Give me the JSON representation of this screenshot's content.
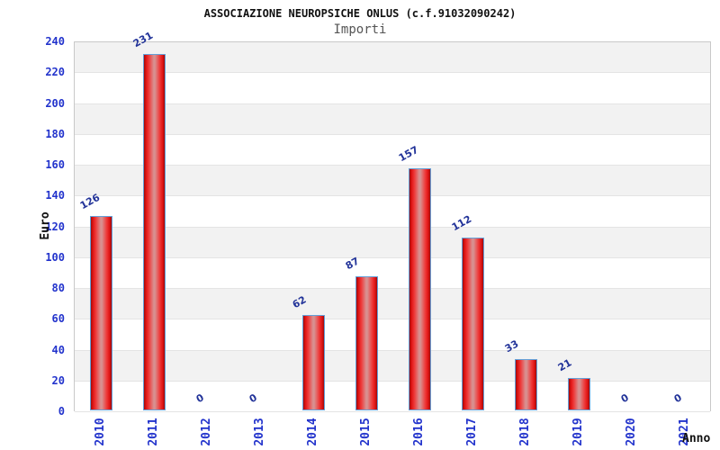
{
  "header": {
    "title": "ASSOCIAZIONE NEUROPSICHE ONLUS (c.f.91032090242)",
    "subtitle": "Importi"
  },
  "chart_data": {
    "type": "bar",
    "title": "ASSOCIAZIONE NEUROPSICHE ONLUS (c.f.91032090242)",
    "subtitle": "Importi",
    "categories": [
      "2010",
      "2011",
      "2012",
      "2013",
      "2014",
      "2015",
      "2016",
      "2017",
      "2018",
      "2019",
      "2020",
      "2021"
    ],
    "values": [
      126,
      231,
      0,
      0,
      62,
      87,
      157,
      112,
      33,
      21,
      0,
      0
    ],
    "xlabel": "Anno",
    "ylabel": "Euro",
    "ylim": [
      0,
      240
    ],
    "ytick_step": 20,
    "grid": "horizontal-bands-alternating",
    "legend": "none"
  },
  "colors": {
    "bar_edge_dark": "#9e0b0b",
    "bar_main": "#e01414",
    "bar_center": "#d89090",
    "bar_border": "#64a0d8",
    "axis_tick_label": "#2233cc",
    "value_label": "#223399",
    "band_gray": "#f2f2f2",
    "band_white": "#ffffff",
    "plot_border": "#c9c9c9",
    "title_color": "#111111",
    "subtitle_color": "#555555"
  }
}
